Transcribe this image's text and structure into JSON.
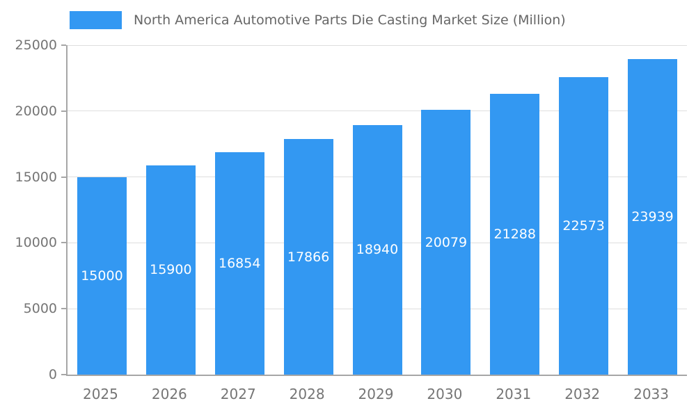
{
  "legend": {
    "swatch_color": "#3398f2"
  },
  "chart_data": {
    "type": "bar",
    "title": "North America Automotive Parts Die Casting Market Size (Million)",
    "categories": [
      "2025",
      "2026",
      "2027",
      "2028",
      "2029",
      "2030",
      "2031",
      "2032",
      "2033"
    ],
    "values": [
      15000,
      15900,
      16854,
      17866,
      18940,
      20079,
      21288,
      22573,
      23939
    ],
    "value_labels": [
      "15000",
      "15900",
      "16854",
      "17866",
      "18940",
      "20079",
      "21288",
      "22573",
      "23939"
    ],
    "xlabel": "",
    "ylabel": "",
    "ylim": [
      0,
      25000
    ],
    "yticks": [
      0,
      5000,
      10000,
      15000,
      20000,
      25000
    ],
    "ytick_labels": [
      "0",
      "5000",
      "10000",
      "15000",
      "20000",
      "25000"
    ],
    "grid": true,
    "legend_position": "top",
    "bar_color": "#3398f2",
    "value_label_color": "#ffffff"
  }
}
